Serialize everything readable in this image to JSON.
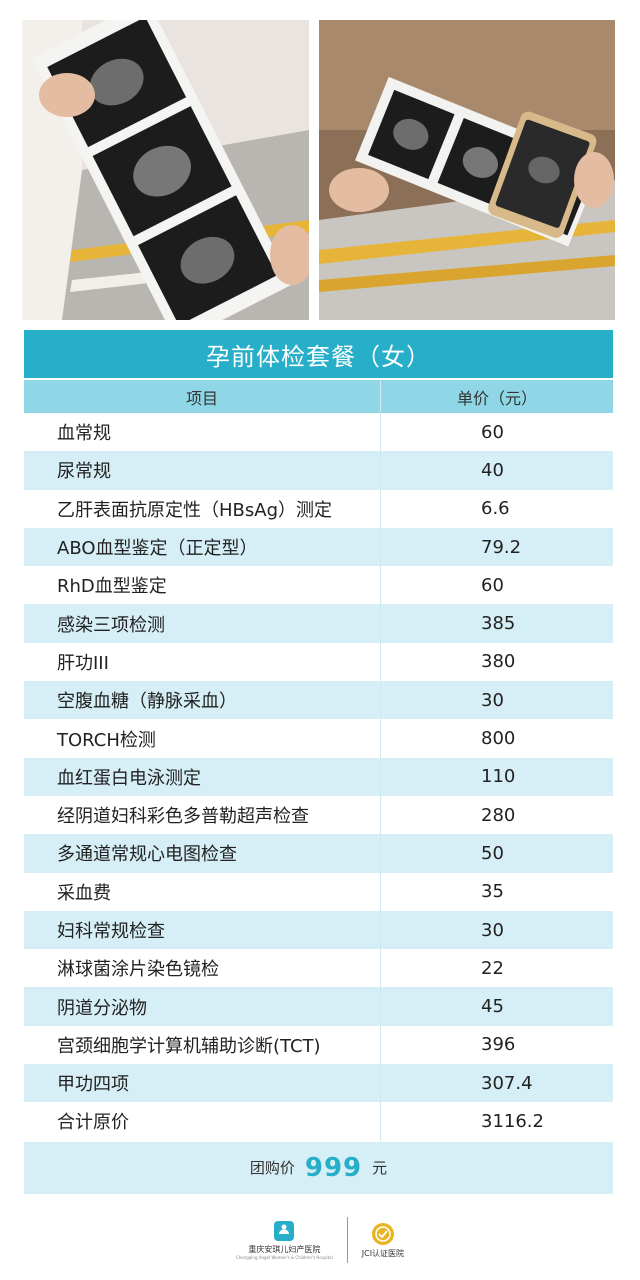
{
  "table": {
    "title": "孕前体检套餐（女）",
    "headers": {
      "item": "项目",
      "price": "单价（元）"
    },
    "rows": [
      {
        "item": "血常规",
        "price": "60"
      },
      {
        "item": "尿常规",
        "price": "40"
      },
      {
        "item": "乙肝表面抗原定性（HBsAg）测定",
        "price": "6.6"
      },
      {
        "item": "ABO血型鉴定（正定型）",
        "price": "79.2"
      },
      {
        "item": "RhD血型鉴定",
        "price": "60"
      },
      {
        "item": "感染三项检测",
        "price": "385"
      },
      {
        "item": "肝功III",
        "price": "380"
      },
      {
        "item": "空腹血糖（静脉采血）",
        "price": "30"
      },
      {
        "item": "TORCH检测",
        "price": "800"
      },
      {
        "item": "血红蛋白电泳测定",
        "price": "110"
      },
      {
        "item": "经阴道妇科彩色多普勒超声检查",
        "price": "280"
      },
      {
        "item": "多通道常规心电图检查",
        "price": "50"
      },
      {
        "item": "采血费",
        "price": "35"
      },
      {
        "item": "妇科常规检查",
        "price": "30"
      },
      {
        "item": "淋球菌涂片染色镜检",
        "price": "22"
      },
      {
        "item": "阴道分泌物",
        "price": "45"
      },
      {
        "item": "宫颈细胞学计算机辅助诊断(TCT)",
        "price": "396"
      },
      {
        "item": "甲功四项",
        "price": "307.4"
      },
      {
        "item": "合计原价",
        "price": "3116.2"
      }
    ],
    "group_price": {
      "label": "团购价",
      "value": "999",
      "unit": "元"
    }
  },
  "logos": {
    "hospital_name": "重庆安琪儿妇产医院",
    "hospital_en": "Chongqing Angel Women's & Children's Hospital",
    "jci_name": "JCI认证医院"
  },
  "colors": {
    "accent": "#27aec9",
    "header": "#8fd6e6",
    "stripe": "#d6eef5"
  }
}
